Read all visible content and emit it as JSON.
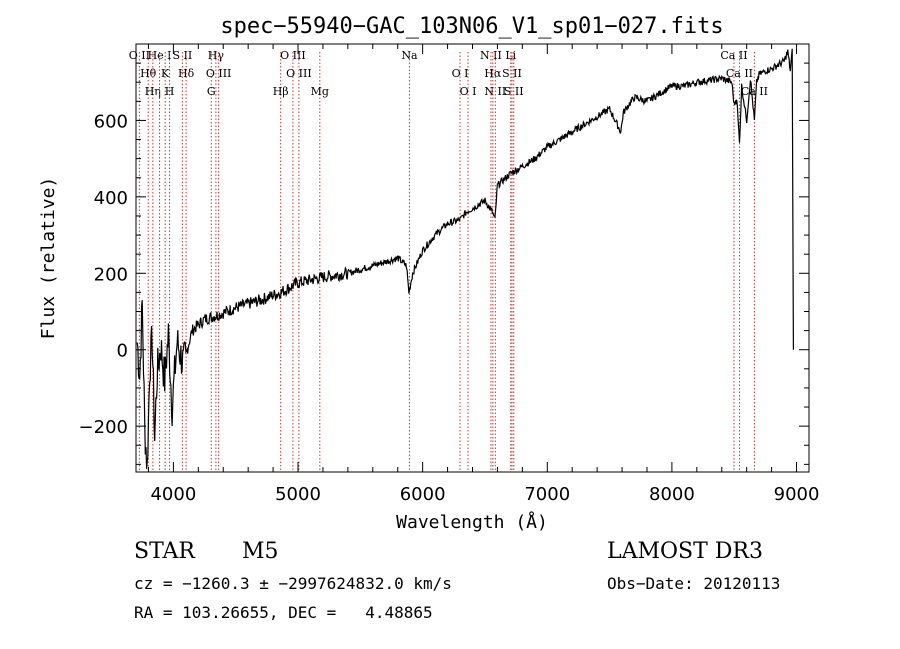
{
  "chart_data": {
    "type": "line",
    "title": "spec−55940−GAC_103N06_V1_sp01−027.fits",
    "xlabel": "Wavelength (Å)",
    "ylabel": "Flux (relative)",
    "xlim": [
      3700,
      9100
    ],
    "ylim": [
      -320,
      800
    ],
    "x_ticks": [
      4000,
      5000,
      6000,
      7000,
      8000,
      9000
    ],
    "y_ticks": [
      -200,
      0,
      200,
      400,
      600
    ],
    "y_tick_labels": [
      "−200",
      "0",
      "200",
      "400",
      "600"
    ],
    "grid": false,
    "line_color": "#000000",
    "marker_color": "#cc3333",
    "series": [
      {
        "name": "flux",
        "x": [
          3710,
          3730,
          3750,
          3770,
          3790,
          3810,
          3830,
          3850,
          3870,
          3900,
          3930,
          3960,
          3990,
          4030,
          4080,
          4150,
          4250,
          4350,
          4500,
          4700,
          4860,
          5000,
          5200,
          5400,
          5600,
          5800,
          5870,
          5890,
          5920,
          6000,
          6100,
          6200,
          6300,
          6350,
          6400,
          6500,
          6560,
          6580,
          6600,
          6700,
          6800,
          6900,
          7000,
          7100,
          7200,
          7300,
          7400,
          7500,
          7590,
          7610,
          7650,
          7700,
          7800,
          7900,
          8000,
          8100,
          8200,
          8300,
          8400,
          8480,
          8500,
          8520,
          8542,
          8560,
          8600,
          8630,
          8662,
          8680,
          8700,
          8750,
          8800,
          8850,
          8900,
          8930,
          8950,
          8965,
          8975
        ],
        "y": [
          20,
          -70,
          120,
          -200,
          -310,
          -50,
          30,
          -230,
          -60,
          10,
          -80,
          40,
          -150,
          20,
          -40,
          50,
          80,
          90,
          110,
          130,
          150,
          175,
          190,
          200,
          220,
          240,
          220,
          150,
          200,
          260,
          300,
          330,
          340,
          360,
          370,
          390,
          360,
          340,
          430,
          460,
          480,
          500,
          530,
          550,
          570,
          590,
          610,
          630,
          570,
          620,
          640,
          660,
          650,
          670,
          690,
          690,
          700,
          705,
          710,
          700,
          640,
          660,
          540,
          690,
          600,
          710,
          600,
          700,
          720,
          730,
          735,
          745,
          755,
          780,
          730,
          780,
          0
        ]
      }
    ],
    "lines": [
      {
        "name": "O II",
        "wavelength": 3727
      },
      {
        "name": "Hθ",
        "wavelength": 3798
      },
      {
        "name": "Hη",
        "wavelength": 3835
      },
      {
        "name": "He I",
        "wavelength": 3889
      },
      {
        "name": "K",
        "wavelength": 3934
      },
      {
        "name": "H",
        "wavelength": 3969
      },
      {
        "name": "S II",
        "wavelength": 4072
      },
      {
        "name": "Hδ",
        "wavelength": 4102
      },
      {
        "name": "G",
        "wavelength": 4304
      },
      {
        "name": "Hγ",
        "wavelength": 4341
      },
      {
        "name": "O III",
        "wavelength": 4363
      },
      {
        "name": "Hβ",
        "wavelength": 4861
      },
      {
        "name": "O III",
        "wavelength": 4959
      },
      {
        "name": "O III",
        "wavelength": 5007
      },
      {
        "name": "Mg",
        "wavelength": 5175
      },
      {
        "name": "Na",
        "wavelength": 5894
      },
      {
        "name": "O I",
        "wavelength": 6300
      },
      {
        "name": "O I",
        "wavelength": 6364
      },
      {
        "name": "N II",
        "wavelength": 6548
      },
      {
        "name": "Hα",
        "wavelength": 6563
      },
      {
        "name": "N II",
        "wavelength": 6583
      },
      {
        "name": "Li",
        "wavelength": 6707
      },
      {
        "name": "S II",
        "wavelength": 6717
      },
      {
        "name": "S II",
        "wavelength": 6731
      },
      {
        "name": "Ca II",
        "wavelength": 8498
      },
      {
        "name": "Ca II",
        "wavelength": 8542
      },
      {
        "name": "Ca II",
        "wavelength": 8662
      }
    ]
  },
  "info": {
    "object_class": "STAR",
    "subclass": "M5",
    "survey": "LAMOST DR3",
    "redshift_line": "cz = −1260.3 ± −2997624832.0 km/s",
    "obs_date": "Obs−Date: 20120113",
    "coords_line": "RA = 103.26655, DEC =   4.48865"
  }
}
